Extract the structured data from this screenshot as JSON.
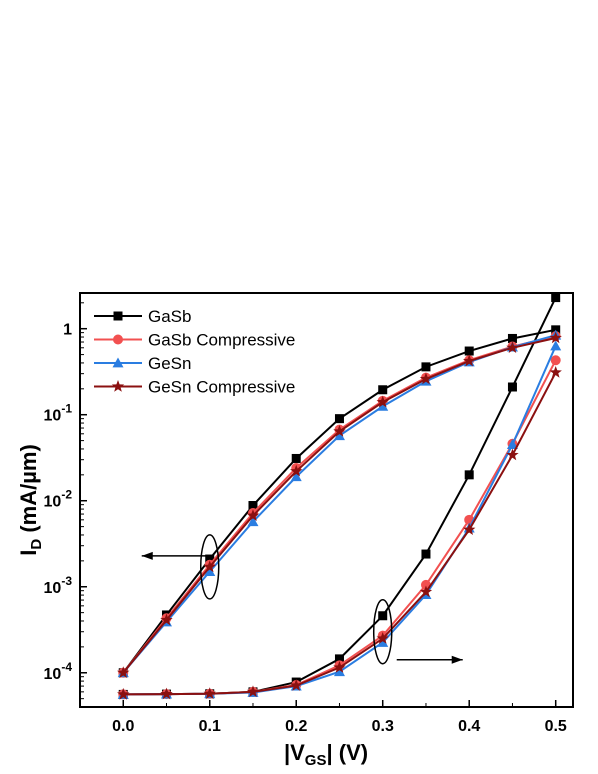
{
  "chart_data": {
    "type": "line",
    "y_scale": "log",
    "xlim": [
      -0.05,
      0.52
    ],
    "ylim": [
      4e-05,
      2.6
    ],
    "x_ticks": [
      0.0,
      0.1,
      0.2,
      0.3,
      0.4,
      0.5
    ],
    "x_tick_labels": [
      "0.0",
      "0.1",
      "0.2",
      "0.3",
      "0.4",
      "0.5"
    ],
    "y_ticks": [
      0.0001,
      0.001,
      0.01,
      0.1,
      1
    ],
    "y_tick_labels": [
      {
        "base": "10",
        "exp": "-4"
      },
      {
        "base": "10",
        "exp": "-3"
      },
      {
        "base": "10",
        "exp": "-2"
      },
      {
        "base": "10",
        "exp": "-1"
      },
      {
        "base": "1",
        "exp": ""
      }
    ],
    "xlabel": {
      "pre": "|V",
      "sub": "GS",
      "post": "| (V)"
    },
    "ylabel": {
      "pre": "I",
      "sub": "D",
      "post": " (mA/µm)"
    },
    "legend_position": "top-left",
    "grid": false,
    "x": [
      0.0,
      0.05,
      0.1,
      0.15,
      0.2,
      0.25,
      0.3,
      0.35,
      0.4,
      0.45,
      0.5
    ],
    "series": [
      {
        "name": "GaSb",
        "color": "#000000",
        "marker": "square",
        "log_values": [
          0.0001,
          0.00047,
          0.0021,
          0.0088,
          0.031,
          0.09,
          0.195,
          0.36,
          0.55,
          0.77,
          0.97
        ],
        "linear_values": [
          5.6e-05,
          5.65e-05,
          5.7e-05,
          6e-05,
          7.8e-05,
          0.000145,
          0.00046,
          0.0024,
          0.02,
          0.21,
          2.3
        ]
      },
      {
        "name": "GaSb Compressive",
        "color": "#f25050",
        "marker": "circle",
        "log_values": [
          0.0001,
          0.00043,
          0.0018,
          0.0072,
          0.024,
          0.067,
          0.145,
          0.27,
          0.43,
          0.62,
          0.82
        ],
        "linear_values": [
          5.6e-05,
          5.65e-05,
          5.7e-05,
          6e-05,
          7.2e-05,
          0.000122,
          0.00027,
          0.00105,
          0.006,
          0.046,
          0.43
        ]
      },
      {
        "name": "GeSn",
        "color": "#2a7de1",
        "marker": "triangle",
        "log_values": [
          0.0001,
          0.00039,
          0.0015,
          0.0057,
          0.019,
          0.057,
          0.125,
          0.245,
          0.41,
          0.61,
          0.84
        ],
        "linear_values": [
          5.6e-05,
          5.65e-05,
          5.7e-05,
          5.9e-05,
          7e-05,
          0.000103,
          0.000225,
          0.00081,
          0.0048,
          0.045,
          0.63
        ]
      },
      {
        "name": "GeSn Compressive",
        "color": "#8b1010",
        "marker": "star",
        "log_values": [
          0.0001,
          0.00041,
          0.0017,
          0.0067,
          0.022,
          0.064,
          0.14,
          0.26,
          0.42,
          0.6,
          0.78
        ],
        "linear_values": [
          5.6e-05,
          5.65e-05,
          5.7e-05,
          6e-05,
          7.1e-05,
          0.000115,
          0.00025,
          0.00087,
          0.0046,
          0.034,
          0.31
        ]
      }
    ],
    "annotations": [
      {
        "type": "ellipse-arrow",
        "x": 0.1,
        "y": 0.0017,
        "direction": "left",
        "target": "log_values"
      },
      {
        "type": "ellipse-arrow",
        "x": 0.3,
        "y": 0.0003,
        "direction": "right",
        "target": "linear_values"
      }
    ]
  }
}
